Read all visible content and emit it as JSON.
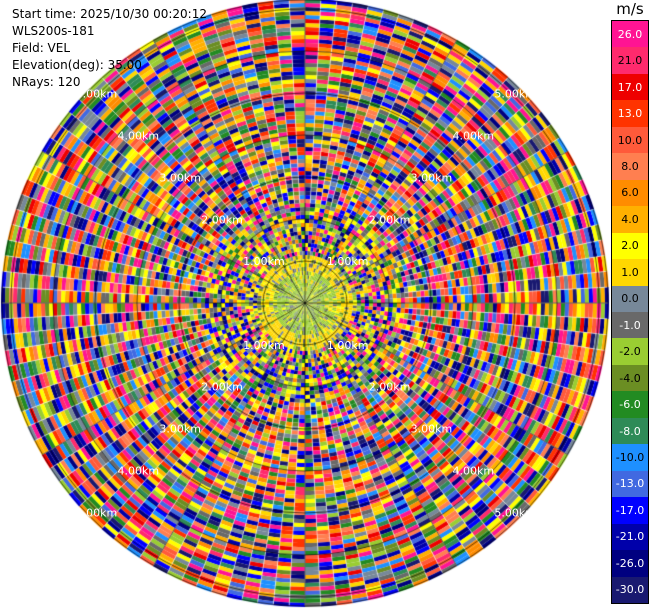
{
  "info": {
    "start_time": "Start time: 2025/10/30 00:20:12",
    "instrument": "WLS200s-181",
    "field": "Field: VEL",
    "elevation": "Elevation(deg): 35.00",
    "nrays": "NRays: 120"
  },
  "colorbar": {
    "unit": "m/s",
    "entries": [
      {
        "label": "26.0",
        "color": "#ff1493"
      },
      {
        "label": "21.0",
        "color": "#ff2a6d"
      },
      {
        "label": "17.0",
        "color": "#ee0000"
      },
      {
        "label": "13.0",
        "color": "#ff3300"
      },
      {
        "label": "10.0",
        "color": "#ff5a3a"
      },
      {
        "label": "8.0",
        "color": "#ff7f50"
      },
      {
        "label": "6.0",
        "color": "#ff8c00"
      },
      {
        "label": "4.0",
        "color": "#ffb000"
      },
      {
        "label": "2.0",
        "color": "#ffff00"
      },
      {
        "label": "1.0",
        "color": "#ffd700"
      },
      {
        "label": "0.0",
        "color": "#778899"
      },
      {
        "label": "-1.0",
        "color": "#696969"
      },
      {
        "label": "-2.0",
        "color": "#9acd32"
      },
      {
        "label": "-4.0",
        "color": "#6b8e23"
      },
      {
        "label": "-6.0",
        "color": "#228b22"
      },
      {
        "label": "-8.0",
        "color": "#2e8b57"
      },
      {
        "label": "-10.0",
        "color": "#1e90ff"
      },
      {
        "label": "-13.0",
        "color": "#4169e1"
      },
      {
        "label": "-17.0",
        "color": "#0000ff"
      },
      {
        "label": "-21.0",
        "color": "#0000aa"
      },
      {
        "label": "-26.0",
        "color": "#000080"
      },
      {
        "label": "-30.0",
        "color": "#191970"
      }
    ]
  },
  "ring_labels": [
    "1.00km",
    "2.00km",
    "3.00km",
    "4.00km",
    "5.00km"
  ],
  "plot": {
    "nrays": 120,
    "background_color": "#ffffff",
    "ring_color": "#000000"
  }
}
